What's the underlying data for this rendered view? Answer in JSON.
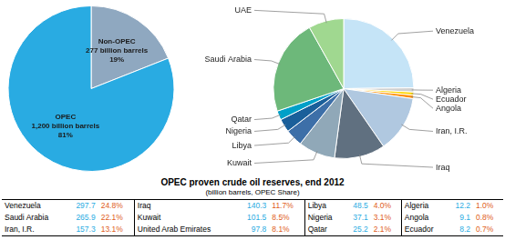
{
  "chart_data": [
    {
      "type": "pie",
      "categories": [
        "Non-OPEC\n277 billion barrels",
        "OPEC\n1,200 billion barrels"
      ],
      "values": [
        19,
        81
      ],
      "value_labels": [
        "19%",
        "81%"
      ],
      "colors": [
        "#8fa8c0",
        "#29abe2"
      ],
      "data_labels": true
    },
    {
      "type": "pie",
      "categories": [
        "Venezuela",
        "Algeria",
        "Ecuador",
        "Angola",
        "Iran, I.R.",
        "Iraq",
        "Kuwait",
        "Libya",
        "Nigeria",
        "Qatar",
        "Saudi Arabia",
        "UAE"
      ],
      "values": [
        24.8,
        1.0,
        0.7,
        0.8,
        13.1,
        11.7,
        8.5,
        4.0,
        3.1,
        2.1,
        22.1,
        8.1
      ],
      "colors": [
        "#c5e4f7",
        "#d0d0d0",
        "#ffd700",
        "#ff8c00",
        "#b0c8e0",
        "#607080",
        "#90a8b8",
        "#3d6fa8",
        "#1a5f9a",
        "#00a0c8",
        "#6db87a",
        "#a0d890"
      ]
    },
    {
      "type": "table",
      "title": "OPEC proven crude oil reserves, end 2012",
      "subtitle": "(billion barrels, OPEC Share)",
      "categories": [
        "Venezuela",
        "Iraq",
        "Libya",
        "Algeria",
        "Saudi Arabia",
        "Kuwait",
        "Nigeria",
        "Angola",
        "Iran, I.R.",
        "United Arab Emirates",
        "Qatar",
        "Ecuador"
      ],
      "values": [
        297.7,
        140.3,
        48.5,
        12.2,
        265.9,
        101.5,
        37.1,
        9.1,
        157.3,
        97.8,
        25.2,
        8.2
      ],
      "shares": [
        {
          "value": 24.8,
          "label": "24.8%"
        },
        {
          "value": 11.7,
          "label": "11.7%"
        },
        {
          "value": 4.0,
          "label": "4.0%"
        },
        {
          "value": 1.0,
          "label": "1.0%"
        },
        {
          "value": 22.1,
          "label": "22.1%"
        },
        {
          "value": 8.5,
          "label": "8.5%"
        },
        {
          "value": 3.1,
          "label": "3.1%"
        },
        {
          "value": 0.8,
          "label": "0.8%"
        },
        {
          "value": 13.1,
          "label": "13.1%"
        },
        {
          "value": 8.1,
          "label": "8.1%"
        },
        {
          "value": 2.1,
          "label": "2.1%"
        },
        {
          "value": 0.7,
          "label": "0.7%"
        }
      ],
      "colors": [
        "black",
        "#29abe2",
        "#e05c20"
      ]
    }
  ]
}
